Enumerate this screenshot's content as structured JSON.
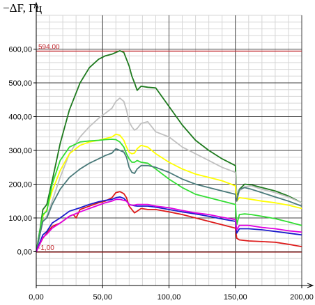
{
  "chart_data": {
    "type": "line",
    "ylabel": "−ΔF, Гц",
    "xlabel": "",
    "xlim": [
      0,
      200
    ],
    "ylim": [
      -100,
      700
    ],
    "x_ticks": [
      0,
      50,
      100,
      150,
      200
    ],
    "x_tick_labels": [
      "0,00",
      "50,00",
      "100,00",
      "150,00",
      "200,00"
    ],
    "y_ticks": [
      0,
      100,
      200,
      300,
      400,
      500,
      600
    ],
    "y_tick_labels": [
      "0,00",
      "100,00",
      "200,00",
      "300,00",
      "400,00",
      "500,00",
      "600,00"
    ],
    "grid": true,
    "reference_lines": [
      {
        "y": 594,
        "label": "594,00",
        "color": "#c0272d"
      },
      {
        "y": -1,
        "label": "-1,00",
        "color": "#8b1a1a"
      }
    ],
    "series": [
      {
        "color": "#1e7a1e",
        "x": [
          0,
          3,
          5,
          8,
          12,
          18,
          25,
          33,
          40,
          47,
          52,
          57,
          60,
          63,
          66,
          68,
          70,
          72,
          74,
          76,
          79,
          84,
          90,
          100,
          110,
          120,
          130,
          140,
          150,
          151,
          153,
          157,
          162,
          170,
          180,
          190,
          200
        ],
        "y": [
          0,
          70,
          125,
          140,
          210,
          320,
          420,
          500,
          545,
          570,
          580,
          585,
          590,
          595,
          590,
          570,
          550,
          520,
          500,
          478,
          490,
          487,
          485,
          430,
          375,
          330,
          300,
          275,
          255,
          160,
          185,
          200,
          198,
          190,
          180,
          165,
          145
        ]
      },
      {
        "color": "#c0c0c0",
        "x": [
          0,
          3,
          5,
          8,
          12,
          18,
          25,
          33,
          40,
          47,
          52,
          57,
          60,
          63,
          66,
          68,
          70,
          72,
          74,
          76,
          79,
          84,
          90,
          100,
          110,
          120,
          130,
          140,
          150,
          151,
          153,
          157,
          162,
          170,
          180,
          190,
          200
        ],
        "y": [
          0,
          55,
          95,
          105,
          150,
          220,
          290,
          340,
          370,
          395,
          410,
          425,
          445,
          455,
          445,
          420,
          385,
          370,
          360,
          365,
          380,
          385,
          355,
          340,
          310,
          290,
          270,
          250,
          235,
          155,
          180,
          192,
          195,
          185,
          175,
          162,
          145
        ]
      },
      {
        "color": "#ffff00",
        "x": [
          0,
          3,
          5,
          8,
          12,
          18,
          25,
          33,
          40,
          47,
          52,
          57,
          60,
          63,
          66,
          68,
          70,
          72,
          74,
          76,
          79,
          84,
          90,
          100,
          110,
          120,
          130,
          140,
          150,
          151,
          153,
          157,
          162,
          170,
          180,
          190,
          200
        ],
        "y": [
          0,
          60,
          105,
          125,
          180,
          240,
          290,
          315,
          325,
          330,
          335,
          340,
          348,
          345,
          330,
          310,
          295,
          290,
          292,
          305,
          315,
          310,
          290,
          265,
          245,
          230,
          220,
          210,
          195,
          150,
          160,
          158,
          155,
          150,
          145,
          138,
          128
        ]
      },
      {
        "color": "#33dd33",
        "x": [
          0,
          3,
          5,
          8,
          12,
          18,
          25,
          33,
          40,
          47,
          52,
          57,
          60,
          63,
          66,
          68,
          70,
          72,
          74,
          76,
          79,
          84,
          90,
          100,
          110,
          120,
          130,
          140,
          150,
          151,
          153,
          157,
          162,
          170,
          180,
          190,
          200
        ],
        "y": [
          0,
          65,
          110,
          120,
          200,
          270,
          310,
          325,
          328,
          330,
          332,
          333,
          332,
          325,
          310,
          290,
          275,
          265,
          265,
          270,
          265,
          262,
          245,
          215,
          190,
          170,
          160,
          150,
          140,
          80,
          110,
          112,
          110,
          105,
          98,
          88,
          78
        ]
      },
      {
        "color": "#4a7a7a",
        "x": [
          0,
          3,
          5,
          8,
          12,
          18,
          25,
          33,
          40,
          47,
          52,
          57,
          60,
          63,
          66,
          68,
          70,
          72,
          74,
          76,
          79,
          84,
          90,
          100,
          110,
          120,
          130,
          140,
          150,
          151,
          153,
          157,
          162,
          170,
          180,
          190,
          200
        ],
        "y": [
          0,
          55,
          90,
          100,
          140,
          185,
          220,
          245,
          262,
          275,
          285,
          292,
          305,
          300,
          295,
          280,
          250,
          235,
          232,
          245,
          255,
          255,
          250,
          235,
          215,
          200,
          190,
          180,
          170,
          150,
          185,
          190,
          185,
          175,
          162,
          150,
          135
        ]
      },
      {
        "color": "#dd1a1a",
        "x": [
          0,
          3,
          5,
          8,
          12,
          18,
          25,
          28,
          30,
          33,
          40,
          47,
          52,
          57,
          60,
          63,
          66,
          68,
          70,
          72,
          74,
          76,
          79,
          84,
          90,
          100,
          110,
          120,
          130,
          140,
          150,
          151,
          153,
          160,
          170,
          180,
          190,
          200
        ],
        "y": [
          0,
          25,
          40,
          55,
          75,
          85,
          105,
          110,
          100,
          125,
          135,
          145,
          150,
          160,
          175,
          178,
          172,
          160,
          135,
          125,
          115,
          120,
          128,
          125,
          125,
          118,
          110,
          100,
          90,
          80,
          70,
          40,
          35,
          32,
          30,
          28,
          22,
          15
        ]
      },
      {
        "color": "#1a1acc",
        "x": [
          0,
          3,
          5,
          8,
          12,
          18,
          25,
          33,
          40,
          47,
          52,
          57,
          60,
          63,
          66,
          68,
          70,
          72,
          74,
          76,
          79,
          84,
          90,
          100,
          110,
          120,
          130,
          140,
          150,
          151,
          153,
          160,
          170,
          180,
          190,
          200
        ],
        "y": [
          0,
          30,
          50,
          60,
          85,
          100,
          120,
          130,
          140,
          148,
          152,
          155,
          160,
          162,
          158,
          150,
          140,
          138,
          136,
          135,
          135,
          135,
          132,
          125,
          118,
          112,
          105,
          97,
          90,
          55,
          68,
          68,
          65,
          60,
          55,
          50
        ]
      },
      {
        "color": "#e000e0",
        "x": [
          0,
          3,
          5,
          8,
          12,
          18,
          25,
          33,
          40,
          47,
          52,
          57,
          60,
          63,
          66,
          68,
          70,
          72,
          74,
          76,
          79,
          84,
          90,
          100,
          110,
          120,
          130,
          140,
          150,
          151,
          153,
          160,
          170,
          180,
          190,
          200
        ],
        "y": [
          0,
          25,
          42,
          52,
          70,
          85,
          105,
          118,
          128,
          138,
          145,
          150,
          155,
          155,
          152,
          150,
          140,
          138,
          138,
          140,
          140,
          140,
          135,
          130,
          122,
          115,
          110,
          102,
          95,
          65,
          78,
          78,
          72,
          68,
          62,
          58
        ]
      }
    ]
  }
}
